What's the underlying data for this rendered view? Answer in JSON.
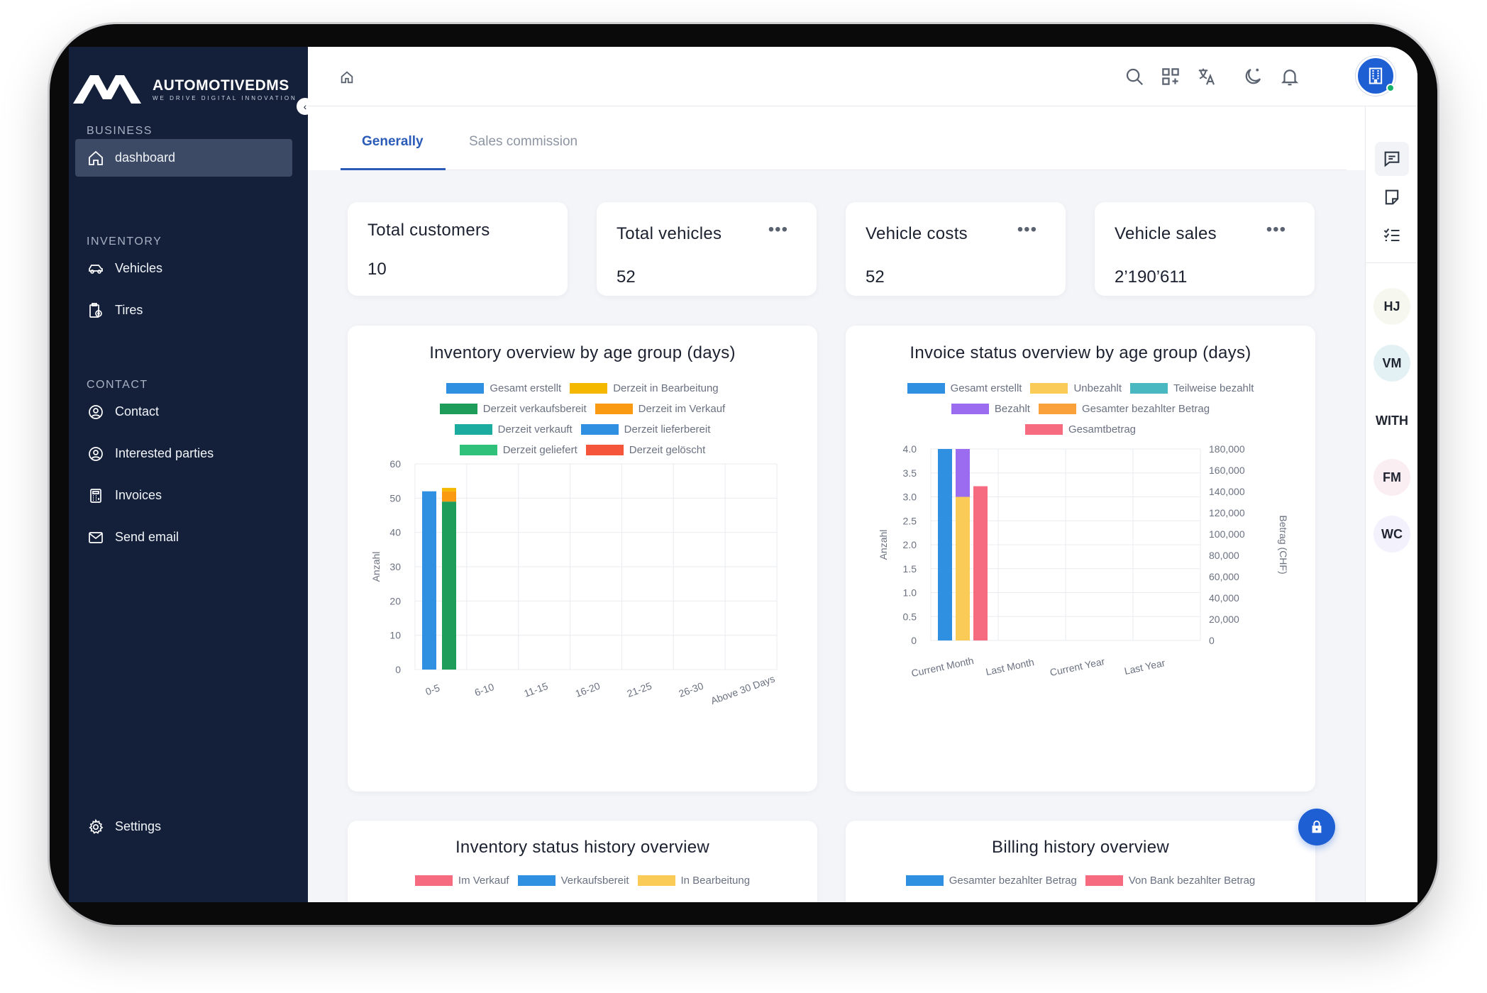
{
  "brand": {
    "name": "AUTOMOTIVEDMS",
    "tagline": "WE DRIVE DIGITAL INNOVATION"
  },
  "sidebar": {
    "sections": [
      {
        "title": "BUSINESS",
        "items": [
          {
            "label": "dashboard",
            "icon": "home-icon",
            "active": true
          }
        ]
      },
      {
        "title": "INVENTORY",
        "items": [
          {
            "label": "Vehicles",
            "icon": "car-icon"
          },
          {
            "label": "Tires",
            "icon": "tires-icon"
          }
        ]
      },
      {
        "title": "CONTACT",
        "items": [
          {
            "label": "Contact",
            "icon": "user-circle-icon"
          },
          {
            "label": "Interested parties",
            "icon": "user-circle-icon"
          },
          {
            "label": "Invoices",
            "icon": "calculator-icon"
          },
          {
            "label": "Send email",
            "icon": "mail-icon"
          }
        ]
      }
    ],
    "footer": {
      "label": "Settings",
      "icon": "gear-icon"
    }
  },
  "topbar": {
    "icons": [
      "home-icon",
      "search-icon",
      "apps-icon",
      "translate-icon",
      "dark-mode-icon",
      "bell-icon",
      "company-avatar"
    ]
  },
  "tabs": [
    {
      "label": "Generally",
      "active": true
    },
    {
      "label": "Sales commission",
      "active": false
    }
  ],
  "kpis": [
    {
      "title": "Total customers",
      "value": "10",
      "menu": false
    },
    {
      "title": "Total vehicles",
      "value": "52",
      "menu": true
    },
    {
      "title": "Vehicle costs",
      "value": "52",
      "menu": true
    },
    {
      "title": "Vehicle sales",
      "value": "2’190’611",
      "menu": true
    }
  ],
  "right_rail": {
    "icons": [
      "chat-icon",
      "note-icon",
      "checklist-icon"
    ],
    "avatars": [
      {
        "initials": "HJ",
        "bg": "#f6f7ee"
      },
      {
        "initials": "VM",
        "bg": "#e4f1f4"
      },
      {
        "initials": "WITH",
        "bg": "#ffffff"
      },
      {
        "initials": "FM",
        "bg": "#fbeef3"
      },
      {
        "initials": "WC",
        "bg": "#f3f1fb"
      }
    ]
  },
  "chart_data": [
    {
      "type": "bar",
      "title": "Inventory overview by age group (days)",
      "xlabel": "",
      "ylabel": "Anzahl",
      "ylim": [
        0,
        60
      ],
      "yticks": [
        0,
        10,
        20,
        30,
        40,
        50,
        60
      ],
      "categories": [
        "0-5",
        "6-10",
        "11-15",
        "16-20",
        "21-25",
        "26-30",
        "Above 30 Days"
      ],
      "series": [
        {
          "name": "Gesamt erstellt",
          "color": "#2f8fe0",
          "values": [
            52,
            0,
            0,
            0,
            0,
            0,
            0
          ]
        },
        {
          "name": "Derzeit in Bearbeitung",
          "color": "#f5b800",
          "values": [
            0,
            0,
            0,
            0,
            0,
            0,
            0
          ]
        },
        {
          "name": "Derzeit verkaufsbereit",
          "color": "#1e9c5a",
          "values": [
            49,
            0,
            0,
            0,
            0,
            0,
            0
          ]
        },
        {
          "name": "Derzeit im Verkauf",
          "color": "#f99a12",
          "values": [
            0,
            0,
            0,
            0,
            0,
            0,
            0
          ]
        },
        {
          "name": "Derzeit verkauft",
          "color": "#1bab9f",
          "values": [
            0,
            0,
            0,
            0,
            0,
            0,
            0
          ]
        },
        {
          "name": "Derzeit lieferbereit",
          "color": "#2f8fe0",
          "values": [
            0,
            0,
            0,
            0,
            0,
            0,
            0
          ]
        },
        {
          "name": "Derzeit geliefert",
          "color": "#2fc07a",
          "values": [
            0,
            0,
            0,
            0,
            0,
            0,
            0
          ]
        },
        {
          "name": "Derzeit gelöscht",
          "color": "#f4553b",
          "values": [
            0,
            0,
            0,
            0,
            0,
            0,
            0
          ]
        }
      ],
      "stacked_extra": [
        {
          "category": "0-5",
          "on_series": "Derzeit verkaufsbereit",
          "name": "Derzeit im Verkauf",
          "value": 3
        },
        {
          "category": "0-5",
          "on_series": "Derzeit verkaufsbereit",
          "name": "Derzeit in Bearbeitung",
          "value": 1
        }
      ],
      "legend_rows": [
        [
          "Gesamt erstellt",
          "Derzeit in Bearbeitung"
        ],
        [
          "Derzeit verkaufsbereit",
          "Derzeit im Verkauf"
        ],
        [
          "Derzeit verkauft",
          "Derzeit lieferbereit"
        ],
        [
          "Derzeit geliefert",
          "Derzeit gelöscht"
        ]
      ],
      "grid": true,
      "legend": "top"
    },
    {
      "type": "bar",
      "title": "Invoice status overview by age group (days)",
      "ylabel": "Anzahl",
      "y2label": "Betrag (CHF)",
      "ylim": [
        0,
        4
      ],
      "yticks": [
        "0",
        "0.5",
        "1.0",
        "1.5",
        "2.0",
        "2.5",
        "3.0",
        "3.5",
        "4.0"
      ],
      "y2lim": [
        0,
        180000
      ],
      "y2ticks": [
        "0",
        "20,000",
        "40,000",
        "60,000",
        "80,000",
        "100,000",
        "120,000",
        "140,000",
        "160,000",
        "180,000"
      ],
      "categories": [
        "Current Month",
        "Last Month",
        "Current Year",
        "Last Year"
      ],
      "series": [
        {
          "name": "Gesamt erstellt",
          "color": "#2f8fe0",
          "axis": "left",
          "values": [
            4,
            0,
            0,
            0
          ]
        },
        {
          "name": "Unbezahlt",
          "color": "#fbcb58",
          "axis": "left",
          "values": [
            3,
            0,
            0,
            0
          ]
        },
        {
          "name": "Teilweise bezahlt",
          "color": "#4ab8c0",
          "axis": "left",
          "values": [
            0,
            0,
            0,
            0
          ]
        },
        {
          "name": "Bezahlt",
          "color": "#9b6bf0",
          "axis": "left",
          "values": [
            1,
            0,
            0,
            0
          ]
        },
        {
          "name": "Gesamter bezahlter Betrag",
          "color": "#fba13c",
          "axis": "right",
          "values": [
            0,
            0,
            0,
            0
          ]
        },
        {
          "name": "Gesamtbetrag",
          "color": "#f76b80",
          "axis": "right",
          "values": [
            145000,
            0,
            0,
            0
          ]
        }
      ],
      "legend_rows": [
        [
          "Gesamt erstellt",
          "Unbezahlt",
          "Teilweise bezahlt"
        ],
        [
          "Bezahlt",
          "Gesamter bezahlter Betrag"
        ],
        [
          "Gesamtbetrag"
        ]
      ],
      "grid": true,
      "legend": "top"
    },
    {
      "type": "line",
      "title": "Inventory status history overview",
      "series": [
        {
          "name": "Im Verkauf",
          "color": "#f76b80"
        },
        {
          "name": "Verkaufsbereit",
          "color": "#2f8fe0"
        },
        {
          "name": "In Bearbeitung",
          "color": "#fbcb58"
        }
      ],
      "legend": "top"
    },
    {
      "type": "line",
      "title": "Billing history overview",
      "series": [
        {
          "name": "Gesamter bezahlter Betrag",
          "color": "#2f8fe0"
        },
        {
          "name": "Von Bank bezahlter Betrag",
          "color": "#f76b80"
        }
      ],
      "legend": "top"
    }
  ]
}
